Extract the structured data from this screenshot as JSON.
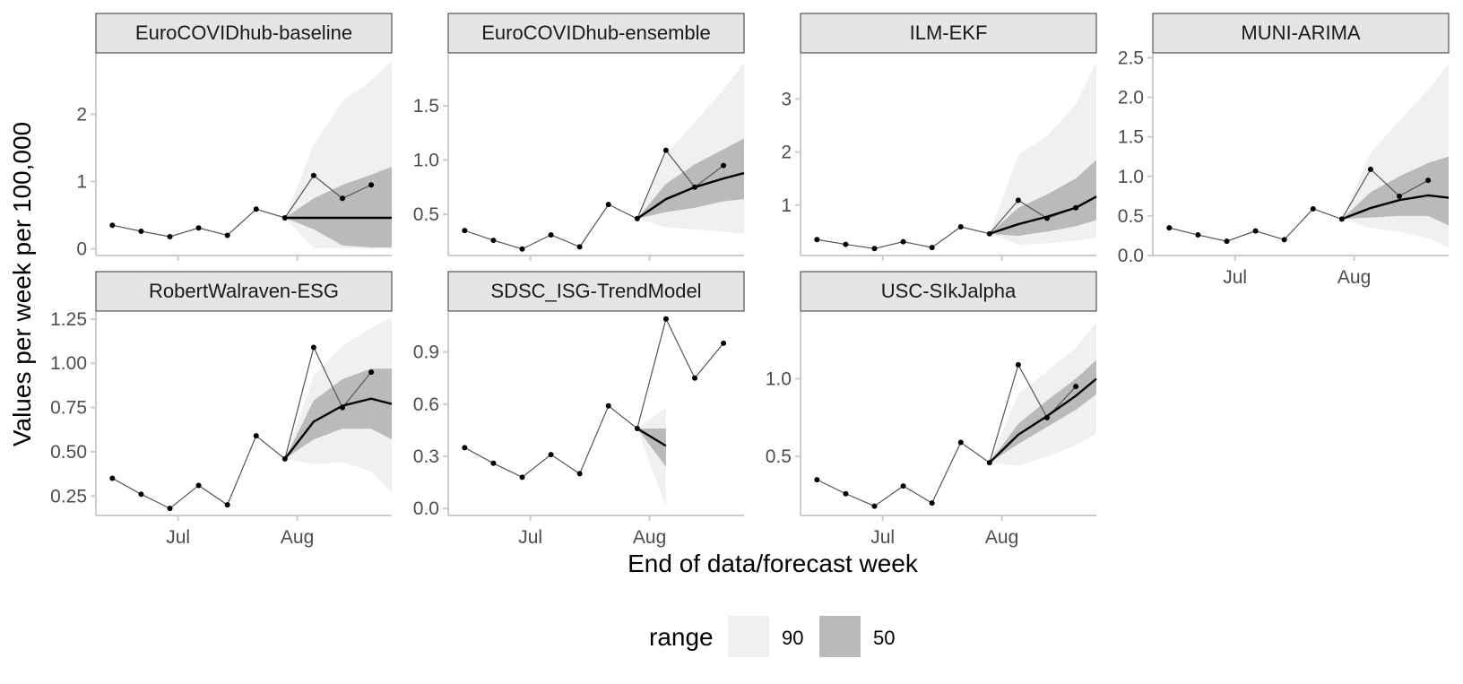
{
  "chart_data": {
    "type": "line",
    "xlabel": "End of data/forecast week",
    "ylabel": "Values per week per 100,000",
    "x_tick_labels": [
      "Jul",
      "Aug"
    ],
    "x_ticks": [
      "2021-07-03",
      "2021-08-01"
    ],
    "x_range": [
      "2021-06-13",
      "2021-08-24"
    ],
    "data_dates": [
      "2021-06-17",
      "2021-06-24",
      "2021-07-01",
      "2021-07-08",
      "2021-07-15",
      "2021-07-22",
      "2021-07-29",
      "2021-08-05",
      "2021-08-12",
      "2021-08-19"
    ],
    "observed": [
      0.35,
      0.26,
      0.18,
      0.31,
      0.2,
      0.59,
      0.46,
      1.09,
      0.75,
      0.95
    ],
    "forecast_dates": [
      "2021-07-29",
      "2021-08-05",
      "2021-08-12",
      "2021-08-19",
      "2021-08-24"
    ],
    "legend": {
      "title": "range",
      "items": [
        {
          "label": "90",
          "color": "#f0f0f0"
        },
        {
          "label": "50",
          "color": "#bababa"
        }
      ]
    },
    "facets": [
      {
        "name": "EuroCOVIDhub-baseline",
        "ylim": [
          -0.1,
          2.9
        ],
        "yticks": [
          0,
          1,
          2
        ],
        "ytick_labels": [
          "0",
          "1",
          "2"
        ],
        "median": [
          0.46,
          0.46,
          0.46,
          0.46,
          0.46
        ],
        "q90_low": [
          0.46,
          0.01,
          0.01,
          0.0,
          0.0
        ],
        "q90_high": [
          0.46,
          1.55,
          2.2,
          2.5,
          2.8
        ],
        "q50_low": [
          0.46,
          0.29,
          0.05,
          0.02,
          0.02
        ],
        "q50_high": [
          0.46,
          0.75,
          0.95,
          1.1,
          1.22
        ]
      },
      {
        "name": "EuroCOVIDhub-ensemble",
        "ylim": [
          0.12,
          1.98
        ],
        "yticks": [
          0.5,
          1.0,
          1.5
        ],
        "ytick_labels": [
          "0.5",
          "1.0",
          "1.5"
        ],
        "median": [
          0.46,
          0.64,
          0.75,
          0.83,
          0.88
        ],
        "q90_low": [
          0.46,
          0.38,
          0.36,
          0.34,
          0.32
        ],
        "q90_high": [
          0.46,
          1.05,
          1.35,
          1.65,
          1.9
        ],
        "q50_low": [
          0.46,
          0.52,
          0.56,
          0.62,
          0.64
        ],
        "q50_high": [
          0.46,
          0.78,
          0.96,
          1.1,
          1.2
        ]
      },
      {
        "name": "ILM-EKF",
        "ylim": [
          0.05,
          3.85
        ],
        "yticks": [
          1,
          2,
          3
        ],
        "ytick_labels": [
          "1",
          "2",
          "3"
        ],
        "median": [
          0.46,
          0.64,
          0.78,
          0.95,
          1.16
        ],
        "q90_low": [
          0.46,
          0.25,
          0.28,
          0.33,
          0.38
        ],
        "q90_high": [
          0.46,
          1.95,
          2.3,
          2.9,
          3.7
        ],
        "q50_low": [
          0.46,
          0.42,
          0.5,
          0.6,
          0.72
        ],
        "q50_high": [
          0.46,
          0.95,
          1.2,
          1.5,
          1.85
        ]
      },
      {
        "name": "MUNI-ARIMA",
        "ylim": [
          0.0,
          2.55
        ],
        "yticks": [
          0.0,
          0.5,
          1.0,
          1.5,
          2.0,
          2.5
        ],
        "ytick_labels": [
          "0.0",
          "0.5",
          "1.0",
          "1.5",
          "2.0",
          "2.5"
        ],
        "median": [
          0.46,
          0.6,
          0.7,
          0.76,
          0.73
        ],
        "q90_low": [
          0.46,
          0.35,
          0.3,
          0.22,
          0.1
        ],
        "q90_high": [
          0.46,
          1.3,
          1.7,
          2.1,
          2.42
        ],
        "q50_low": [
          0.46,
          0.48,
          0.5,
          0.5,
          0.38
        ],
        "q50_high": [
          0.46,
          0.8,
          1.0,
          1.17,
          1.25
        ]
      },
      {
        "name": "RobertWalraven-ESG",
        "ylim": [
          0.14,
          1.29
        ],
        "yticks": [
          0.25,
          0.5,
          0.75,
          1.0,
          1.25
        ],
        "ytick_labels": [
          "0.25",
          "0.50",
          "0.75",
          "1.00",
          "1.25"
        ],
        "median": [
          0.46,
          0.67,
          0.76,
          0.8,
          0.77
        ],
        "q90_low": [
          0.46,
          0.43,
          0.44,
          0.39,
          0.27
        ],
        "q90_high": [
          0.46,
          0.93,
          1.1,
          1.2,
          1.26
        ],
        "q50_low": [
          0.46,
          0.57,
          0.63,
          0.63,
          0.57
        ],
        "q50_high": [
          0.46,
          0.79,
          0.91,
          0.97,
          0.97
        ]
      },
      {
        "name": "SDSC_ISG-TrendModel",
        "ylim": [
          -0.04,
          1.13
        ],
        "yticks": [
          0.0,
          0.3,
          0.6,
          0.9
        ],
        "ytick_labels": [
          "0.0",
          "0.3",
          "0.6",
          "0.9"
        ],
        "median": [
          0.46,
          0.36
        ],
        "q90_low": [
          0.46,
          0.01
        ],
        "q90_high": [
          0.46,
          0.58
        ],
        "q50_low": [
          0.46,
          0.24
        ],
        "q50_high": [
          0.46,
          0.46
        ]
      },
      {
        "name": "USC-SIkJalpha",
        "ylim": [
          0.12,
          1.43
        ],
        "yticks": [
          0.5,
          1.0
        ],
        "ytick_labels": [
          "0.5",
          "1.0"
        ],
        "median": [
          0.46,
          0.64,
          0.76,
          0.89,
          1.0
        ],
        "q90_low": [
          0.46,
          0.44,
          0.5,
          0.57,
          0.65
        ],
        "q90_high": [
          0.46,
          0.9,
          1.05,
          1.2,
          1.36
        ],
        "q50_low": [
          0.46,
          0.58,
          0.69,
          0.8,
          0.9
        ],
        "q50_high": [
          0.46,
          0.71,
          0.86,
          1.0,
          1.12
        ]
      }
    ]
  }
}
